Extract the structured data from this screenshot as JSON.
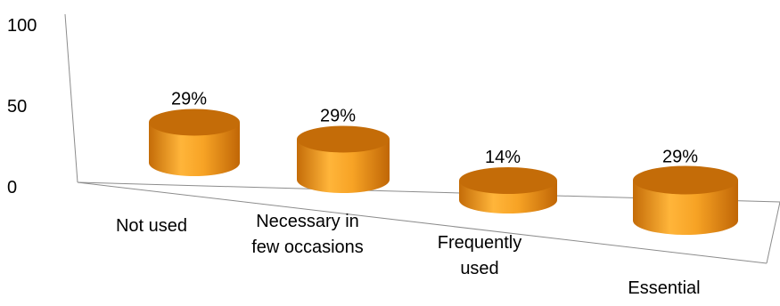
{
  "chart_data": {
    "type": "bar",
    "style": "3d-cylinder",
    "categories": [
      "Not used",
      "Necessary in few occasions",
      "Frequently used",
      "Essential"
    ],
    "category_lines": [
      [
        "Not used"
      ],
      [
        "Necessary in",
        "few occasions"
      ],
      [
        "Frequently",
        "used"
      ],
      [
        "Essential"
      ]
    ],
    "values": [
      29,
      29,
      14,
      29
    ],
    "data_labels": [
      "29%",
      "29%",
      "14%",
      "29%"
    ],
    "yticks": [
      "0",
      "50",
      "100"
    ],
    "ylim": [
      0,
      100
    ],
    "grid": false,
    "legend": "none",
    "colors": {
      "bar_side": "#f59a1b",
      "bar_top": "#c46c08",
      "bar_highlight": "#ffc04a",
      "axis": "#8c8c8c"
    }
  }
}
